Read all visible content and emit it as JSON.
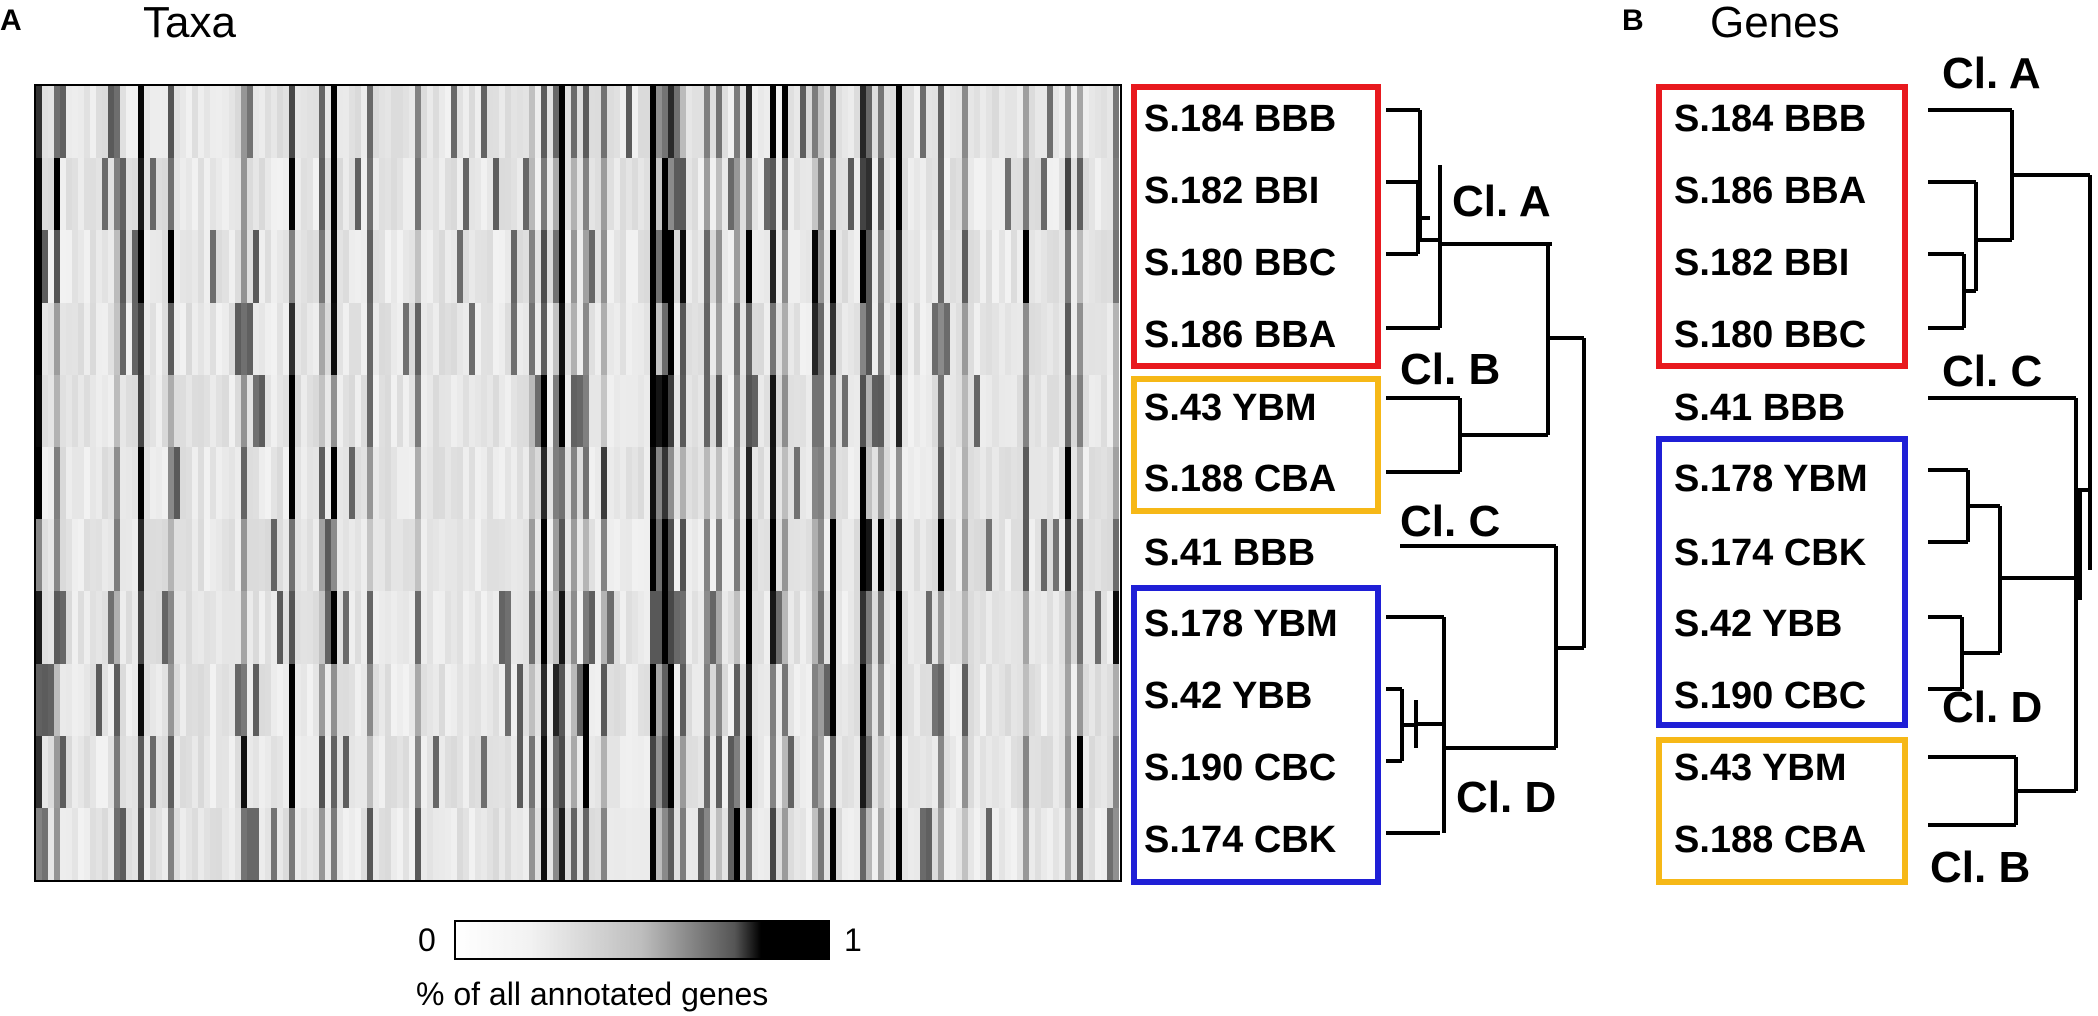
{
  "panelA": {
    "letter": "A",
    "title": "Taxa",
    "rows": [
      "S.184 BBB",
      "S.182 BBI",
      "S.180 BBC",
      "S.186 BBA",
      "S.43 YBM",
      "S.188 CBA",
      "S.41 BBB",
      "S.178 YBM",
      "S.42 YBB",
      "S.190 CBC",
      "S.174 CBK"
    ],
    "clades": {
      "a": "Cl. A",
      "b": "Cl. B",
      "c": "Cl. C",
      "d": "Cl. D"
    },
    "colorbar": {
      "min": "0",
      "max": "1",
      "label": "% of all annotated genes"
    }
  },
  "panelB": {
    "letter": "B",
    "title": "Genes",
    "rows": [
      "S.184 BBB",
      "S.186 BBA",
      "S.182 BBI",
      "S.180 BBC",
      "S.41 BBB",
      "S.178 YBM",
      "S.174 CBK",
      "S.42 YBB",
      "S.190 CBC",
      "S.43 YBM",
      "S.188 CBA"
    ],
    "clades": {
      "a": "Cl. A",
      "c": "Cl. C",
      "d": "Cl. D",
      "b": "Cl. B"
    }
  },
  "colors": {
    "cladeA": "#e8191e",
    "cladeB": "#f6b817",
    "cladeD": "#1f1fd6",
    "line": "#000000"
  }
}
